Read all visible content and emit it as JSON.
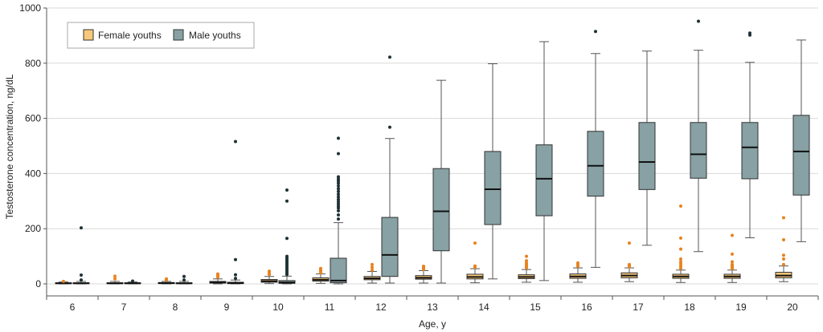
{
  "chart_data": {
    "type": "box",
    "title": "",
    "xlabel": "Age, y",
    "ylabel": "Testosterone concentration, ng/dL",
    "ylim": [
      0,
      1000
    ],
    "yticks": [
      "0",
      "200",
      "400",
      "600",
      "800",
      "1000"
    ],
    "categories": [
      "6",
      "7",
      "8",
      "9",
      "10",
      "11",
      "12",
      "13",
      "14",
      "15",
      "16",
      "17",
      "18",
      "19",
      "20"
    ],
    "grid": "horizontal",
    "legend_position": "top-left",
    "series": [
      {
        "name": "Female youths",
        "color": "#f7c87a",
        "outlier_color": "#e8821e",
        "boxes": [
          {
            "min": 0,
            "q1": 1,
            "median": 2,
            "q3": 4,
            "max": 7,
            "outliers": [
              9
            ]
          },
          {
            "min": 0,
            "q1": 1,
            "median": 2,
            "q3": 4,
            "max": 9,
            "outliers": [
              18,
              28
            ]
          },
          {
            "min": 0,
            "q1": 1,
            "median": 3,
            "q3": 5,
            "max": 9,
            "outliers": [
              14,
              18
            ]
          },
          {
            "min": 0,
            "q1": 3,
            "median": 5,
            "q3": 9,
            "max": 18,
            "outliers": [
              24,
              30,
              36
            ]
          },
          {
            "min": 1,
            "q1": 6,
            "median": 10,
            "q3": 16,
            "max": 27,
            "outliers": [
              34,
              40,
              46
            ]
          },
          {
            "min": 2,
            "q1": 10,
            "median": 15,
            "q3": 22,
            "max": 36,
            "outliers": [
              40,
              46,
              52,
              56
            ]
          },
          {
            "min": 3,
            "q1": 15,
            "median": 20,
            "q3": 27,
            "max": 45,
            "outliers": [
              50,
              60,
              70
            ]
          },
          {
            "min": 3,
            "q1": 17,
            "median": 22,
            "q3": 30,
            "max": 48,
            "outliers": [
              52,
              56,
              60,
              64
            ]
          },
          {
            "min": 4,
            "q1": 18,
            "median": 25,
            "q3": 35,
            "max": 55,
            "outliers": [
              60,
              65,
              148
            ]
          },
          {
            "min": 6,
            "q1": 19,
            "median": 25,
            "q3": 33,
            "max": 52,
            "outliers": [
              58,
              64,
              70,
              76,
              84,
              100
            ]
          },
          {
            "min": 6,
            "q1": 20,
            "median": 27,
            "q3": 36,
            "max": 58,
            "outliers": [
              64,
              70,
              76
            ]
          },
          {
            "min": 8,
            "q1": 22,
            "median": 30,
            "q3": 40,
            "max": 58,
            "outliers": [
              62,
              66,
              70,
              148
            ]
          },
          {
            "min": 5,
            "q1": 20,
            "median": 27,
            "q3": 35,
            "max": 50,
            "outliers": [
              56,
              64,
              72,
              80,
              90,
              126,
              166,
              282
            ]
          },
          {
            "min": 5,
            "q1": 20,
            "median": 27,
            "q3": 35,
            "max": 50,
            "outliers": [
              55,
              60,
              65,
              70,
              80,
              108,
              176
            ]
          },
          {
            "min": 8,
            "q1": 22,
            "median": 30,
            "q3": 42,
            "max": 65,
            "outliers": [
              70,
              90,
              104,
              160,
              240
            ]
          }
        ]
      },
      {
        "name": "Male youths",
        "color": "#87a1a4",
        "outlier_color": "#1f3135",
        "boxes": [
          {
            "min": 0,
            "q1": 1,
            "median": 2,
            "q3": 4,
            "max": 9,
            "outliers": [
              14,
              32,
              203
            ]
          },
          {
            "min": 0,
            "q1": 1,
            "median": 2,
            "q3": 4,
            "max": 7,
            "outliers": [
              10
            ]
          },
          {
            "min": 0,
            "q1": 1,
            "median": 2,
            "q3": 4,
            "max": 9,
            "outliers": [
              14,
              27
            ]
          },
          {
            "min": 0,
            "q1": 1,
            "median": 3,
            "q3": 6,
            "max": 14,
            "outliers": [
              20,
              33,
              88,
              516
            ]
          },
          {
            "min": 0,
            "q1": 2,
            "median": 5,
            "q3": 12,
            "max": 28,
            "outliers": [
              34,
              40,
              46,
              52,
              58,
              64,
              70,
              76,
              82,
              88,
              94,
              100,
              165,
              300,
              340
            ]
          },
          {
            "min": 0,
            "q1": 4,
            "median": 12,
            "q3": 93,
            "max": 222,
            "outliers": [
              235,
              250,
              265,
              275,
              282,
              290,
              298,
              306,
              315,
              325,
              335,
              345,
              355,
              365,
              373,
              380,
              388,
              472,
              528
            ]
          },
          {
            "min": 3,
            "q1": 27,
            "median": 105,
            "q3": 241,
            "max": 527,
            "outliers": [
              568,
              822
            ]
          },
          {
            "min": 3,
            "q1": 120,
            "median": 263,
            "q3": 418,
            "max": 738,
            "outliers": []
          },
          {
            "min": 18,
            "q1": 215,
            "median": 343,
            "q3": 480,
            "max": 798,
            "outliers": []
          },
          {
            "min": 12,
            "q1": 247,
            "median": 381,
            "q3": 504,
            "max": 878,
            "outliers": []
          },
          {
            "min": 60,
            "q1": 318,
            "median": 428,
            "q3": 553,
            "max": 835,
            "outliers": [
              915
            ]
          },
          {
            "min": 140,
            "q1": 342,
            "median": 442,
            "q3": 585,
            "max": 844,
            "outliers": []
          },
          {
            "min": 117,
            "q1": 383,
            "median": 470,
            "q3": 585,
            "max": 847,
            "outliers": [
              952
            ]
          },
          {
            "min": 167,
            "q1": 381,
            "median": 495,
            "q3": 585,
            "max": 803,
            "outliers": [
              902,
              909
            ]
          },
          {
            "min": 153,
            "q1": 322,
            "median": 480,
            "q3": 611,
            "max": 884,
            "outliers": []
          }
        ]
      }
    ]
  }
}
